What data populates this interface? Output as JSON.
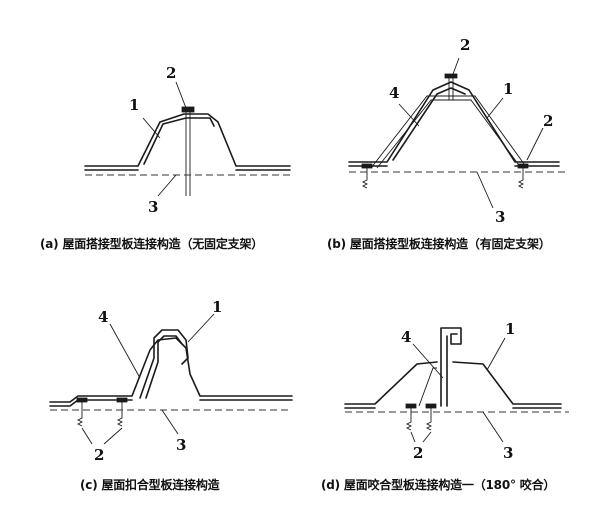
{
  "panels": [
    {
      "id": "a",
      "caption": "(a) 屋面搭接型板连接构造（无固定支架）",
      "callouts": [
        "1",
        "2",
        "3"
      ]
    },
    {
      "id": "b",
      "caption": "(b) 屋面搭接型板连接构造（有固定支架）",
      "callouts": [
        "1",
        "2",
        "2",
        "3",
        "4"
      ]
    },
    {
      "id": "c",
      "caption": "(c) 屋面扣合型板连接构造",
      "callouts": [
        "1",
        "2",
        "3",
        "4"
      ]
    },
    {
      "id": "d",
      "caption": "(d) 屋面咬合型板连接构造一（180° 咬合）",
      "callouts": [
        "1",
        "2",
        "3",
        "4"
      ]
    }
  ]
}
